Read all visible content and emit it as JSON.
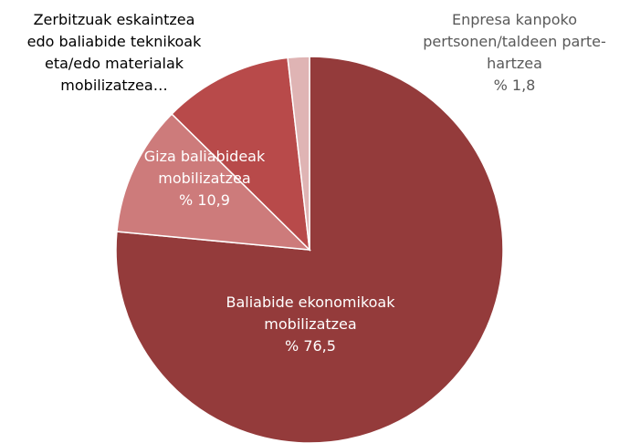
{
  "chart_data": {
    "type": "pie",
    "categories": [
      "Baliabide ekonomikoak mobilizatzea",
      "Giza baliabideak mobilizatzea",
      "Zerbitzuak eskaintzea edo baliabide teknikoak eta/edo materialak mobilizatzea…",
      "Enpresa kanpoko pertsonen/taldeen parte-hartzea"
    ],
    "values": [
      76.5,
      10.9,
      10.8,
      1.8
    ],
    "value_labels": [
      "% 76,5",
      "% 10,9",
      null,
      "% 1,8"
    ],
    "colors": [
      "#943b3b",
      "#cd7b7b",
      "#b84a4a",
      "#dfb4b4"
    ]
  }
}
